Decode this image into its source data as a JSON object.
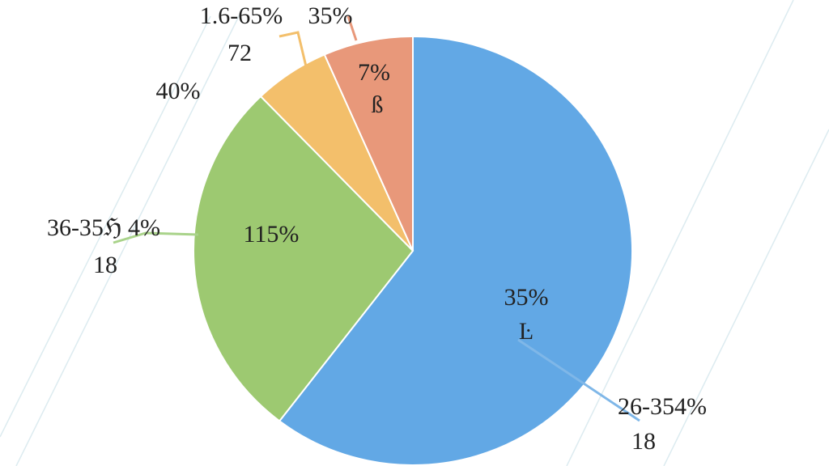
{
  "chart_data": {
    "type": "pie",
    "values": [
      60.4,
      27.4,
      5.6,
      6.6
    ],
    "colors": [
      "#62a8e5",
      "#9dc971",
      "#f3bf6b",
      "#e8987a"
    ],
    "annotations": [
      "35%",
      "Ŀ",
      "115%",
      "7%",
      "ß",
      "26-354%",
      "18",
      "36-35ℌ 4%",
      "18",
      "40%",
      "1.6-65%",
      "72",
      "35%"
    ]
  }
}
